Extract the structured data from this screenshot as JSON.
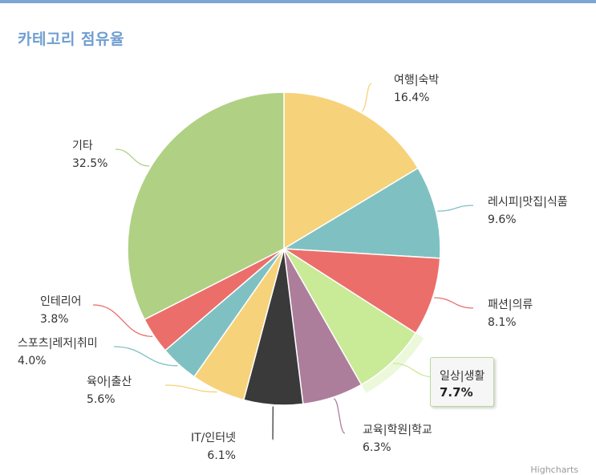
{
  "title": "카테고리 점유율",
  "chart_data": {
    "type": "pie",
    "title": "카테고리 점유율",
    "series": [
      {
        "values": [
          {
            "name": "여행|숙박",
            "value": 16.4,
            "label": "16.4%",
            "color": "#f6d27a"
          },
          {
            "name": "레시피|맛집|식품",
            "value": 9.6,
            "label": "9.6%",
            "color": "#7fc1c2"
          },
          {
            "name": "패션|의류",
            "value": 8.1,
            "label": "8.1%",
            "color": "#eb6e6a"
          },
          {
            "name": "일상|생활",
            "value": 7.7,
            "label": "7.7%",
            "color": "#c9ea96"
          },
          {
            "name": "교육|학원|학교",
            "value": 6.3,
            "label": "6.3%",
            "color": "#ad7e9b"
          },
          {
            "name": "IT/인터넷",
            "value": 6.1,
            "label": "6.1%",
            "color": "#3a3a3a"
          },
          {
            "name": "육아|출산",
            "value": 5.6,
            "label": "5.6%",
            "color": "#f6d27a"
          },
          {
            "name": "스포츠|레저|취미",
            "value": 4.0,
            "label": "4.0%",
            "color": "#7fc1c2"
          },
          {
            "name": "인테리어",
            "value": 3.8,
            "label": "3.8%",
            "color": "#eb6e6a"
          },
          {
            "name": "기타",
            "value": 32.5,
            "label": "32.5%",
            "color": "#b0d084"
          }
        ]
      }
    ],
    "highlighted": "일상|생활"
  },
  "tooltip": {
    "name": "일상|생활",
    "value": "7.7%"
  },
  "credits": "Highcharts"
}
